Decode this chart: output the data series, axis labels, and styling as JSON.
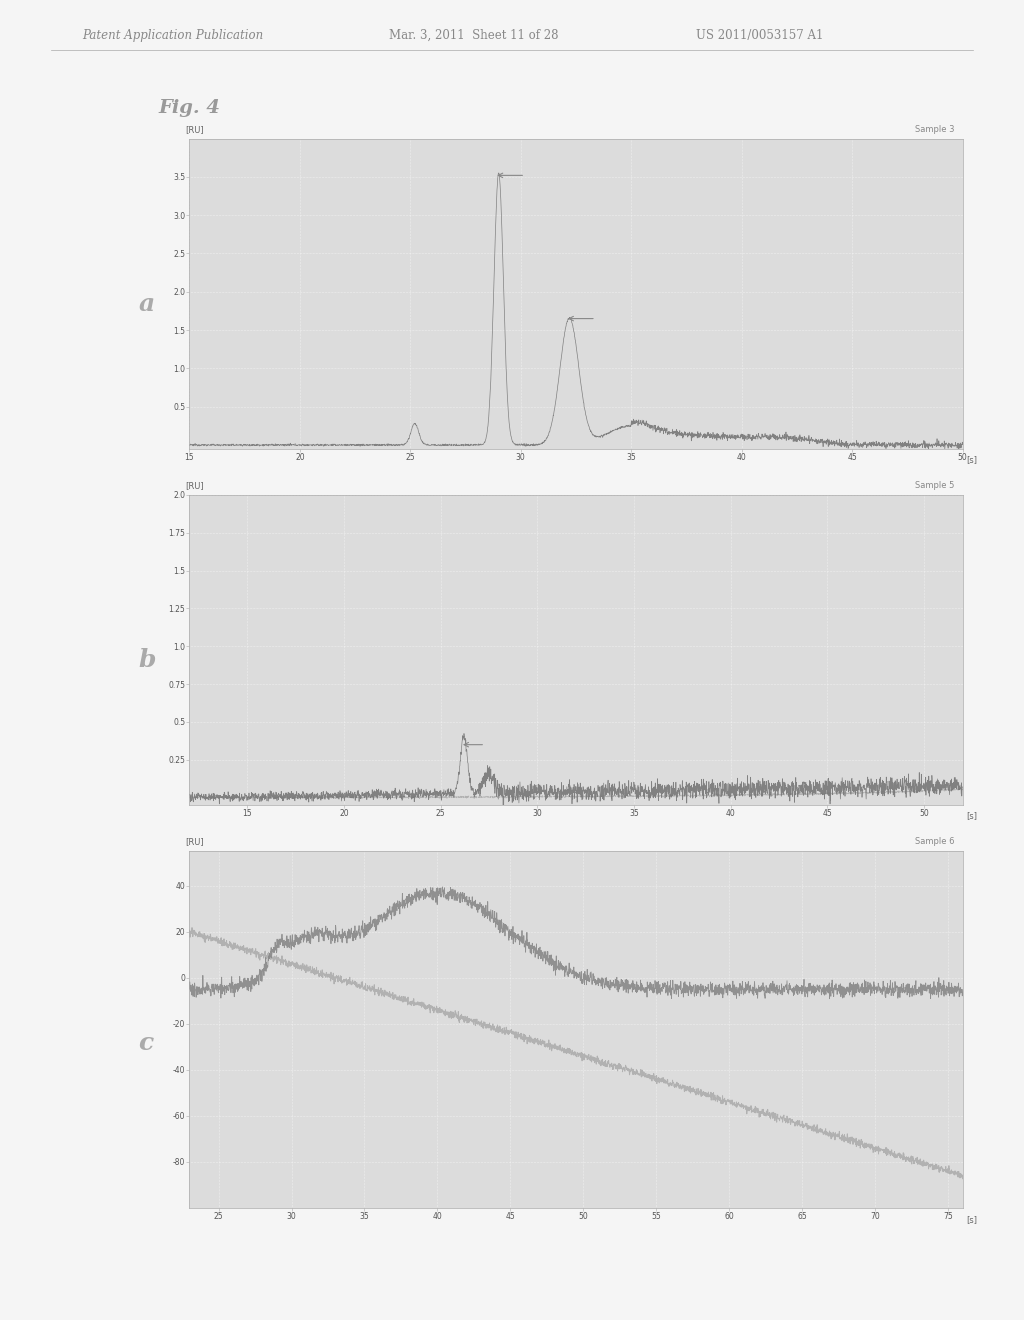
{
  "page_header_left": "Patent Application Publication",
  "page_header_mid": "Mar. 3, 2011  Sheet 11 of 28",
  "page_header_right": "US 2011/0053157 A1",
  "fig_label": "Fig. 4",
  "background_color": "#f5f5f5",
  "plot_bg_color": "#dcdcdc",
  "grid_color": "#ffffff",
  "panels": [
    {
      "label": "a",
      "sample_label": "Sample 3",
      "ylabel": "[RU]",
      "xlabel": "[s]",
      "xlim": [
        15,
        50
      ],
      "xticks": [
        15,
        20,
        25,
        30,
        35,
        40,
        45,
        50
      ],
      "ylim": [
        -0.05,
        4.0
      ],
      "yticks": [
        0.5,
        1.0,
        1.5,
        2.0,
        2.5,
        3.0,
        3.5
      ],
      "ytick_labels": [
        "0.5",
        "1.0",
        "1.5",
        "2.0",
        "2.5",
        "3.0",
        "3.5"
      ]
    },
    {
      "label": "b",
      "sample_label": "Sample 5",
      "ylabel": "[RU]",
      "xlabel": "[s]",
      "xlim": [
        12,
        52
      ],
      "xticks": [
        15,
        20,
        25,
        30,
        35,
        40,
        45,
        50
      ],
      "ylim": [
        -0.05,
        2.0
      ],
      "yticks": [
        0.25,
        0.5,
        0.75,
        1.0,
        1.25,
        1.5,
        1.75,
        2.0
      ],
      "ytick_labels": [
        "0.25",
        "0.5",
        "0.75",
        "1.0",
        "1.25",
        "1.5",
        "1.75",
        "2.0"
      ]
    },
    {
      "label": "c",
      "sample_label": "Sample 6",
      "ylabel": "[RU]",
      "xlabel": "[s]",
      "xlim": [
        23,
        76
      ],
      "xticks": [
        25,
        30,
        35,
        40,
        45,
        50,
        55,
        60,
        65,
        70,
        75
      ],
      "ylim": [
        -100,
        55
      ],
      "yticks": [
        -80,
        -60,
        -40,
        -20,
        0,
        20,
        40
      ],
      "ytick_labels": [
        "-80",
        "-60",
        "-40",
        "-20",
        "0",
        "20",
        "40"
      ]
    }
  ]
}
